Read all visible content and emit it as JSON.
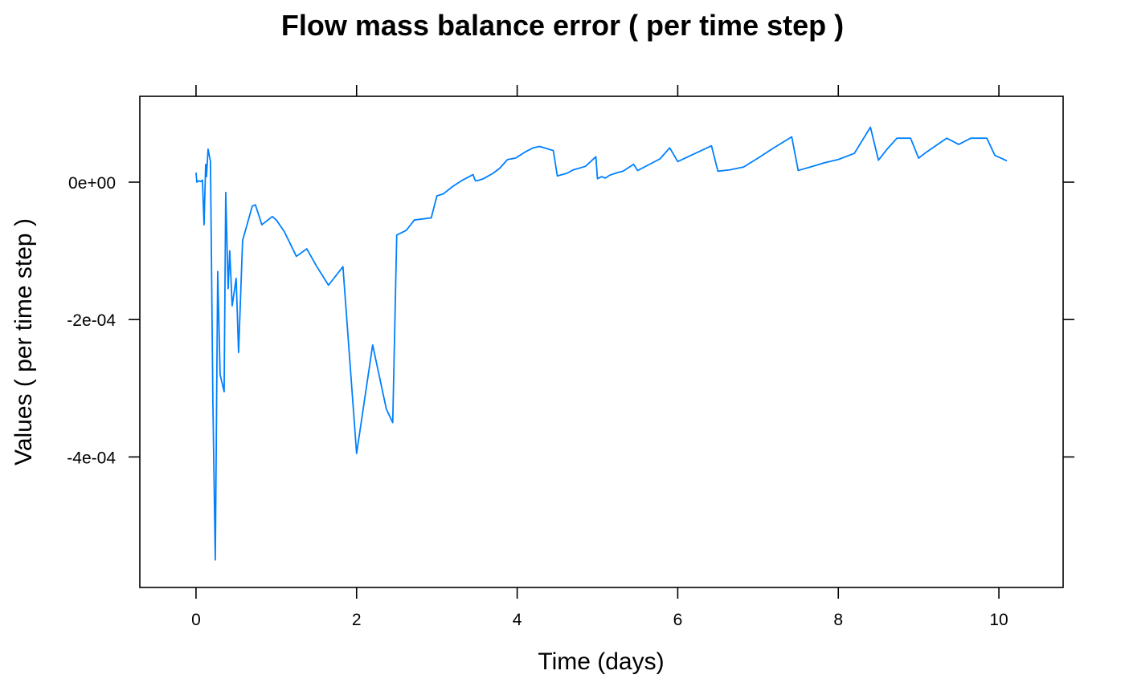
{
  "chart_data": {
    "type": "line",
    "title": "Flow mass balance error ( per time step )",
    "xlabel": "Time (days)",
    "ylabel": "Values ( per time step )",
    "xlim": [
      -0.7,
      10.8
    ],
    "ylim": [
      -0.00059,
      0.000125
    ],
    "x_ticks": [
      0,
      2,
      4,
      6,
      8,
      10
    ],
    "x_tick_labels": [
      "0",
      "2",
      "4",
      "6",
      "8",
      "10"
    ],
    "y_ticks": [
      0,
      -0.0002,
      -0.0004
    ],
    "y_tick_labels": [
      "0e+00",
      "-2e-04",
      "-4e-04"
    ],
    "grid": false,
    "legend": "none",
    "series": [
      {
        "color": "#0080ff",
        "x": [
          0.0,
          0.01,
          0.03,
          0.06,
          0.08,
          0.1,
          0.12,
          0.13,
          0.15,
          0.18,
          0.21,
          0.24,
          0.27,
          0.3,
          0.35,
          0.37,
          0.4,
          0.42,
          0.45,
          0.5,
          0.53,
          0.58,
          0.7,
          0.74,
          0.82,
          0.95,
          1.0,
          1.1,
          1.25,
          1.38,
          1.5,
          1.65,
          1.83,
          2.0,
          2.2,
          2.37,
          2.45,
          2.5,
          2.62,
          2.72,
          2.93,
          3.0,
          3.08,
          3.2,
          3.32,
          3.45,
          3.48,
          3.5,
          3.58,
          3.7,
          3.78,
          3.88,
          3.98,
          4.1,
          4.2,
          4.28,
          4.45,
          4.5,
          4.62,
          4.7,
          4.85,
          4.98,
          5.0,
          5.05,
          5.1,
          5.15,
          5.25,
          5.32,
          5.45,
          5.5,
          5.65,
          5.78,
          5.9,
          6.0,
          6.42,
          6.5,
          6.65,
          6.82,
          7.0,
          7.17,
          7.42,
          7.5,
          7.65,
          7.82,
          8.0,
          8.2,
          8.4,
          8.5,
          8.6,
          8.73,
          8.9,
          9.0,
          9.1,
          9.2,
          9.35,
          9.5,
          9.65,
          9.85,
          9.95,
          10.1
        ],
        "values": [
          1.4e-05,
          0.0,
          2e-06,
          1e-06,
          3e-06,
          -6.2e-05,
          2.6e-05,
          8e-06,
          4.8e-05,
          3e-05,
          -0.00032,
          -0.00055,
          -0.00013,
          -0.00028,
          -0.000305,
          -1.5e-05,
          -0.000155,
          -0.0001,
          -0.00018,
          -0.00014,
          -0.000248,
          -8.5e-05,
          -3.5e-05,
          -3.3e-05,
          -6.2e-05,
          -5e-05,
          -5.5e-05,
          -7.2e-05,
          -0.000108,
          -9.7e-05,
          -0.000122,
          -0.00015,
          -0.000123,
          -0.000395,
          -0.000237,
          -0.00033,
          -0.00035,
          -7.7e-05,
          -7e-05,
          -5.5e-05,
          -5.2e-05,
          -2e-05,
          -1.7e-05,
          -6e-06,
          3e-06,
          1.1e-05,
          2e-06,
          2e-06,
          5e-06,
          1.3e-05,
          2e-05,
          3.3e-05,
          3.5e-05,
          4.4e-05,
          5e-05,
          5.2e-05,
          4.6e-05,
          9e-06,
          1.3e-05,
          1.8e-05,
          2.3e-05,
          3.7e-05,
          5e-06,
          8e-06,
          6e-06,
          1e-05,
          1.4e-05,
          1.6e-05,
          2.6e-05,
          1.7e-05,
          2.6e-05,
          3.4e-05,
          5e-05,
          3e-05,
          5.3e-05,
          1.6e-05,
          1.8e-05,
          2.2e-05,
          3.5e-05,
          4.8e-05,
          6.6e-05,
          1.7e-05,
          2.2e-05,
          2.8e-05,
          3.3e-05,
          4.2e-05,
          8e-05,
          3.2e-05,
          4.7e-05,
          6.4e-05,
          6.4e-05,
          3.5e-05,
          4.4e-05,
          5.2e-05,
          6.4e-05,
          5.5e-05,
          6.4e-05,
          6.4e-05,
          3.9e-05,
          3.1e-05
        ]
      }
    ]
  }
}
